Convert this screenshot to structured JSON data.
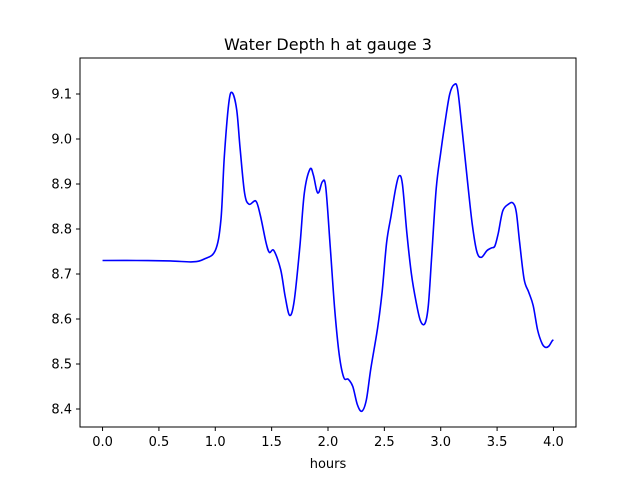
{
  "chart_data": {
    "type": "line",
    "title": "Water Depth h at gauge 3",
    "xlabel": "hours",
    "ylabel": "",
    "xlim": [
      -0.2,
      4.2
    ],
    "ylim": [
      8.36,
      9.18
    ],
    "xticks": [
      0.0,
      0.5,
      1.0,
      1.5,
      2.0,
      2.5,
      3.0,
      3.5,
      4.0
    ],
    "xtick_labels": [
      "0.0",
      "0.5",
      "1.0",
      "1.5",
      "2.0",
      "2.5",
      "3.0",
      "3.5",
      "4.0"
    ],
    "yticks": [
      8.4,
      8.5,
      8.6,
      8.7,
      8.8,
      8.9,
      9.0,
      9.1
    ],
    "ytick_labels": [
      "8.4",
      "8.5",
      "8.6",
      "8.7",
      "8.8",
      "8.9",
      "9.0",
      "9.1"
    ],
    "grid": false,
    "legend": "none",
    "series": [
      {
        "color": "#0000ff",
        "points": [
          [
            0.0,
            8.73
          ],
          [
            0.3,
            8.73
          ],
          [
            0.6,
            8.729
          ],
          [
            0.8,
            8.727
          ],
          [
            0.9,
            8.733
          ],
          [
            1.0,
            8.752
          ],
          [
            1.05,
            8.82
          ],
          [
            1.08,
            8.96
          ],
          [
            1.12,
            9.08
          ],
          [
            1.15,
            9.103
          ],
          [
            1.19,
            9.065
          ],
          [
            1.22,
            8.98
          ],
          [
            1.26,
            8.88
          ],
          [
            1.3,
            8.855
          ],
          [
            1.36,
            8.862
          ],
          [
            1.4,
            8.83
          ],
          [
            1.45,
            8.77
          ],
          [
            1.48,
            8.748
          ],
          [
            1.52,
            8.752
          ],
          [
            1.58,
            8.71
          ],
          [
            1.62,
            8.65
          ],
          [
            1.66,
            8.608
          ],
          [
            1.7,
            8.64
          ],
          [
            1.75,
            8.76
          ],
          [
            1.79,
            8.88
          ],
          [
            1.84,
            8.933
          ],
          [
            1.87,
            8.92
          ],
          [
            1.9,
            8.885
          ],
          [
            1.92,
            8.882
          ],
          [
            1.95,
            8.905
          ],
          [
            1.98,
            8.893
          ],
          [
            2.02,
            8.76
          ],
          [
            2.06,
            8.62
          ],
          [
            2.1,
            8.52
          ],
          [
            2.14,
            8.47
          ],
          [
            2.18,
            8.466
          ],
          [
            2.22,
            8.45
          ],
          [
            2.26,
            8.41
          ],
          [
            2.3,
            8.395
          ],
          [
            2.34,
            8.42
          ],
          [
            2.38,
            8.49
          ],
          [
            2.44,
            8.58
          ],
          [
            2.48,
            8.66
          ],
          [
            2.52,
            8.77
          ],
          [
            2.56,
            8.83
          ],
          [
            2.6,
            8.89
          ],
          [
            2.63,
            8.918
          ],
          [
            2.66,
            8.9
          ],
          [
            2.7,
            8.79
          ],
          [
            2.74,
            8.7
          ],
          [
            2.78,
            8.64
          ],
          [
            2.82,
            8.596
          ],
          [
            2.86,
            8.59
          ],
          [
            2.89,
            8.63
          ],
          [
            2.92,
            8.74
          ],
          [
            2.96,
            8.89
          ],
          [
            3.0,
            8.97
          ],
          [
            3.04,
            9.04
          ],
          [
            3.08,
            9.1
          ],
          [
            3.12,
            9.121
          ],
          [
            3.15,
            9.11
          ],
          [
            3.19,
            9.02
          ],
          [
            3.24,
            8.9
          ],
          [
            3.28,
            8.81
          ],
          [
            3.32,
            8.75
          ],
          [
            3.36,
            8.737
          ],
          [
            3.41,
            8.752
          ],
          [
            3.45,
            8.758
          ],
          [
            3.48,
            8.762
          ],
          [
            3.51,
            8.79
          ],
          [
            3.55,
            8.84
          ],
          [
            3.6,
            8.855
          ],
          [
            3.64,
            8.858
          ],
          [
            3.67,
            8.838
          ],
          [
            3.7,
            8.77
          ],
          [
            3.74,
            8.688
          ],
          [
            3.78,
            8.66
          ],
          [
            3.82,
            8.63
          ],
          [
            3.86,
            8.575
          ],
          [
            3.9,
            8.545
          ],
          [
            3.93,
            8.537
          ],
          [
            3.96,
            8.54
          ],
          [
            3.99,
            8.552
          ],
          [
            4.0,
            8.553
          ]
        ]
      }
    ]
  }
}
